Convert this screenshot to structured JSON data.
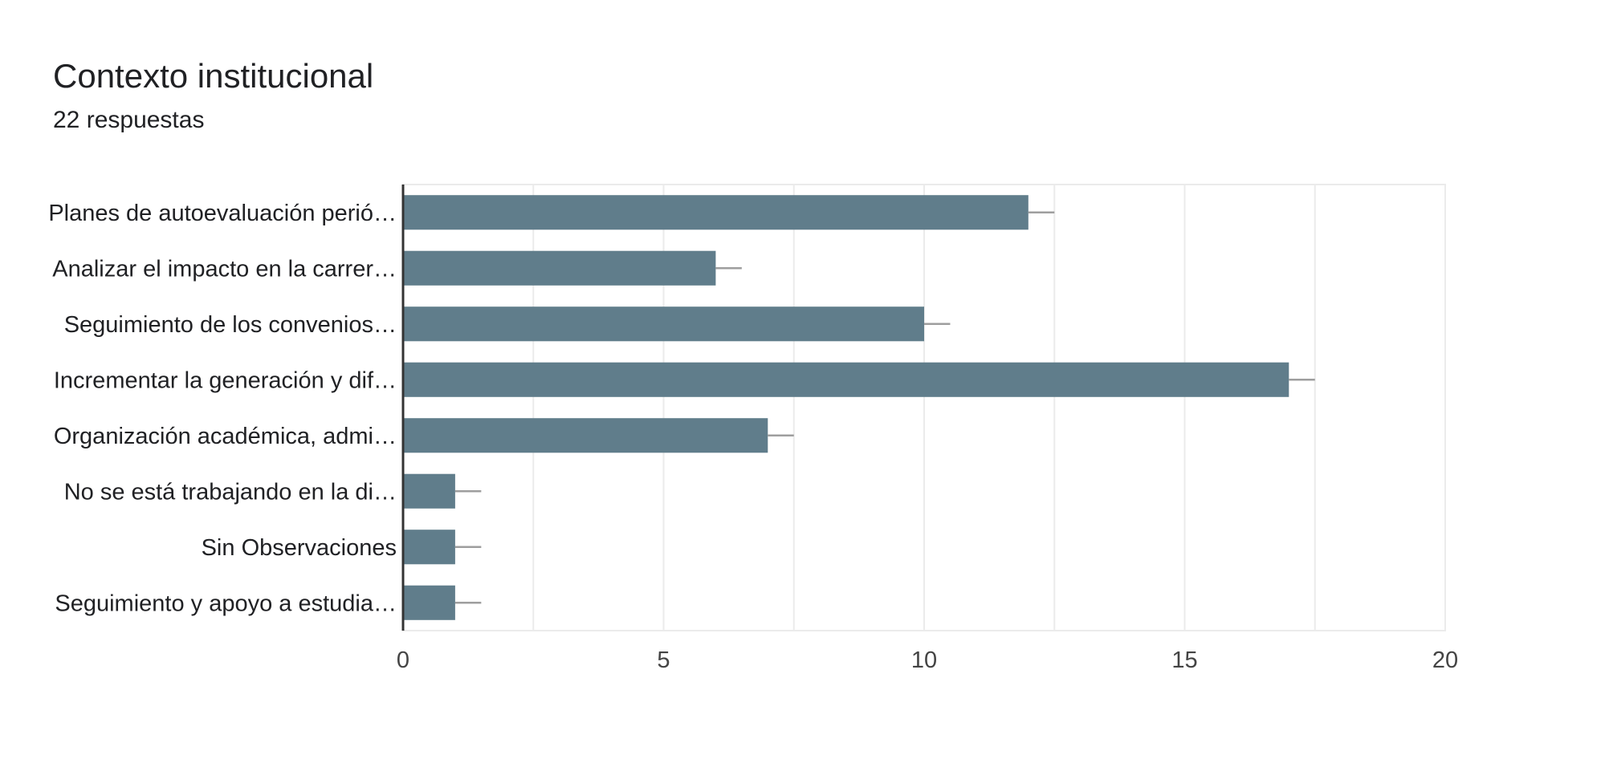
{
  "header": {
    "title": "Contexto institucional",
    "responses": "22 respuestas"
  },
  "colors": {
    "bar": "#607d8b",
    "error_bar": "#9e9e9e",
    "grid": "#ebebeb",
    "axis": "#333333"
  },
  "chart_data": {
    "type": "bar",
    "orientation": "horizontal",
    "title": "Contexto institucional",
    "subtitle": "22 respuestas",
    "categories": [
      "Planes de autoevaluación perió…",
      "Analizar el impacto en la carrer…",
      "Seguimiento de los convenios…",
      "Incrementar la generación y dif…",
      "Organización académica, admi…",
      "No se está trabajando en la di…",
      "Sin Observaciones",
      "Seguimiento y apoyo a estudia…"
    ],
    "values": [
      12,
      6,
      10,
      17,
      7,
      1,
      1,
      1
    ],
    "xlim": [
      0,
      20
    ],
    "xticks": [
      0,
      5,
      10,
      15,
      20
    ],
    "error_bar": 0.5,
    "grid": true,
    "legend": "none"
  }
}
